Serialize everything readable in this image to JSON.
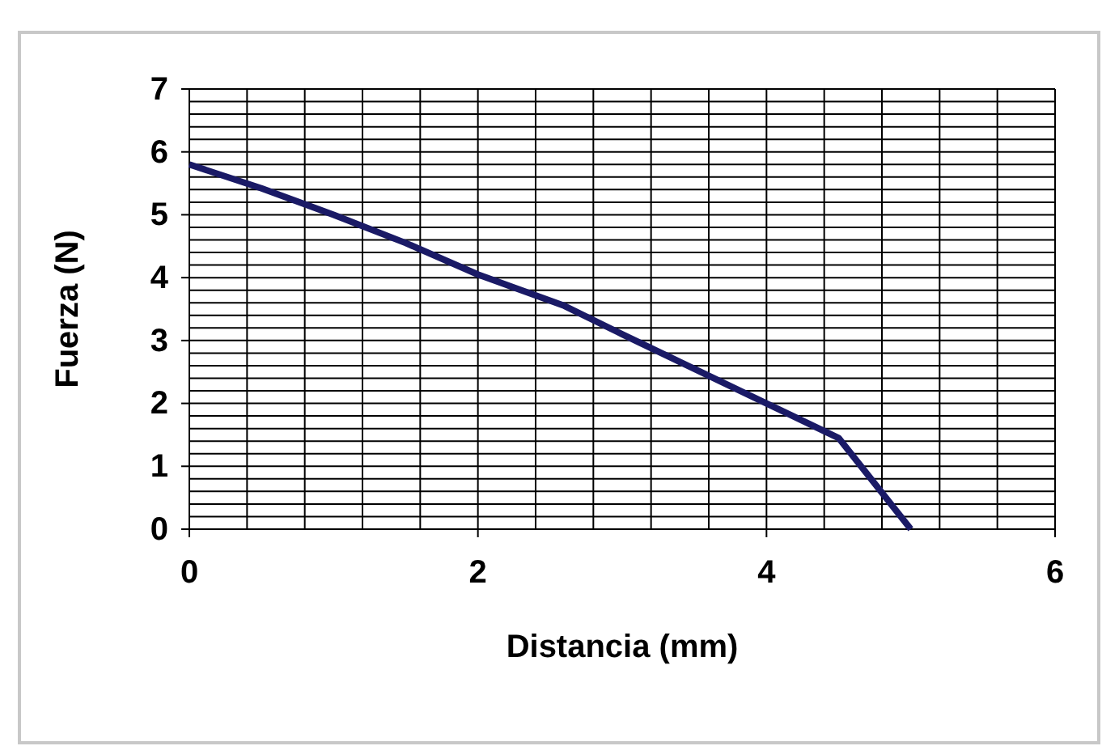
{
  "chart_data": {
    "type": "line",
    "xlabel": "Distancia (mm)",
    "ylabel": "Fuerza (N)",
    "x": [
      0,
      0.5,
      1,
      1.5,
      2,
      2.6,
      3,
      3.5,
      4,
      4.5,
      5
    ],
    "series": [
      {
        "color": "#1a1a66",
        "values": [
          5.8,
          5.42,
          5.0,
          4.55,
          4.05,
          3.55,
          3.1,
          2.55,
          2.0,
          1.45,
          0
        ]
      }
    ],
    "xlim": [
      0,
      6
    ],
    "ylim": [
      0,
      7
    ],
    "xticks": [
      0,
      {
        "value": 0.4,
        "label": null
      },
      {
        "value": 0.8,
        "label": null
      },
      {
        "value": 1.2,
        "label": null
      },
      {
        "value": 1.6,
        "label": null
      },
      2,
      {
        "value": 2.4,
        "label": null
      },
      {
        "value": 2.8,
        "label": null
      },
      {
        "value": 3.2,
        "label": null
      },
      {
        "value": 3.6,
        "label": null
      },
      4,
      {
        "value": 4.4,
        "label": null
      },
      {
        "value": 4.8,
        "label": null
      },
      {
        "value": 5.2,
        "label": null
      },
      {
        "value": 5.6,
        "label": null
      },
      6
    ],
    "yticks": [
      0,
      {
        "value": 0.2,
        "label": null
      },
      {
        "value": 0.4,
        "label": null
      },
      {
        "value": 0.6,
        "label": null
      },
      {
        "value": 0.8,
        "label": null
      },
      1,
      {
        "value": 1.2,
        "label": null
      },
      {
        "value": 1.4,
        "label": null
      },
      {
        "value": 1.6,
        "label": null
      },
      {
        "value": 1.8,
        "label": null
      },
      2,
      {
        "value": 2.2,
        "label": null
      },
      {
        "value": 2.4,
        "label": null
      },
      {
        "value": 2.6,
        "label": null
      },
      {
        "value": 2.8,
        "label": null
      },
      3,
      {
        "value": 3.2,
        "label": null
      },
      {
        "value": 3.4,
        "label": null
      },
      {
        "value": 3.6,
        "label": null
      },
      {
        "value": 3.8,
        "label": null
      },
      4,
      {
        "value": 4.2,
        "label": null
      },
      {
        "value": 4.4,
        "label": null
      },
      {
        "value": 4.6,
        "label": null
      },
      {
        "value": 4.8,
        "label": null
      },
      5,
      {
        "value": 5.2,
        "label": null
      },
      {
        "value": 5.4,
        "label": null
      },
      {
        "value": 5.6,
        "label": null
      },
      {
        "value": 5.8,
        "label": null
      },
      6,
      {
        "value": 6.2,
        "label": null
      },
      {
        "value": 6.4,
        "label": null
      },
      {
        "value": 6.6,
        "label": null
      },
      {
        "value": 6.8,
        "label": null
      },
      7
    ],
    "grid": true,
    "marker": "none",
    "line_style": "solid"
  }
}
